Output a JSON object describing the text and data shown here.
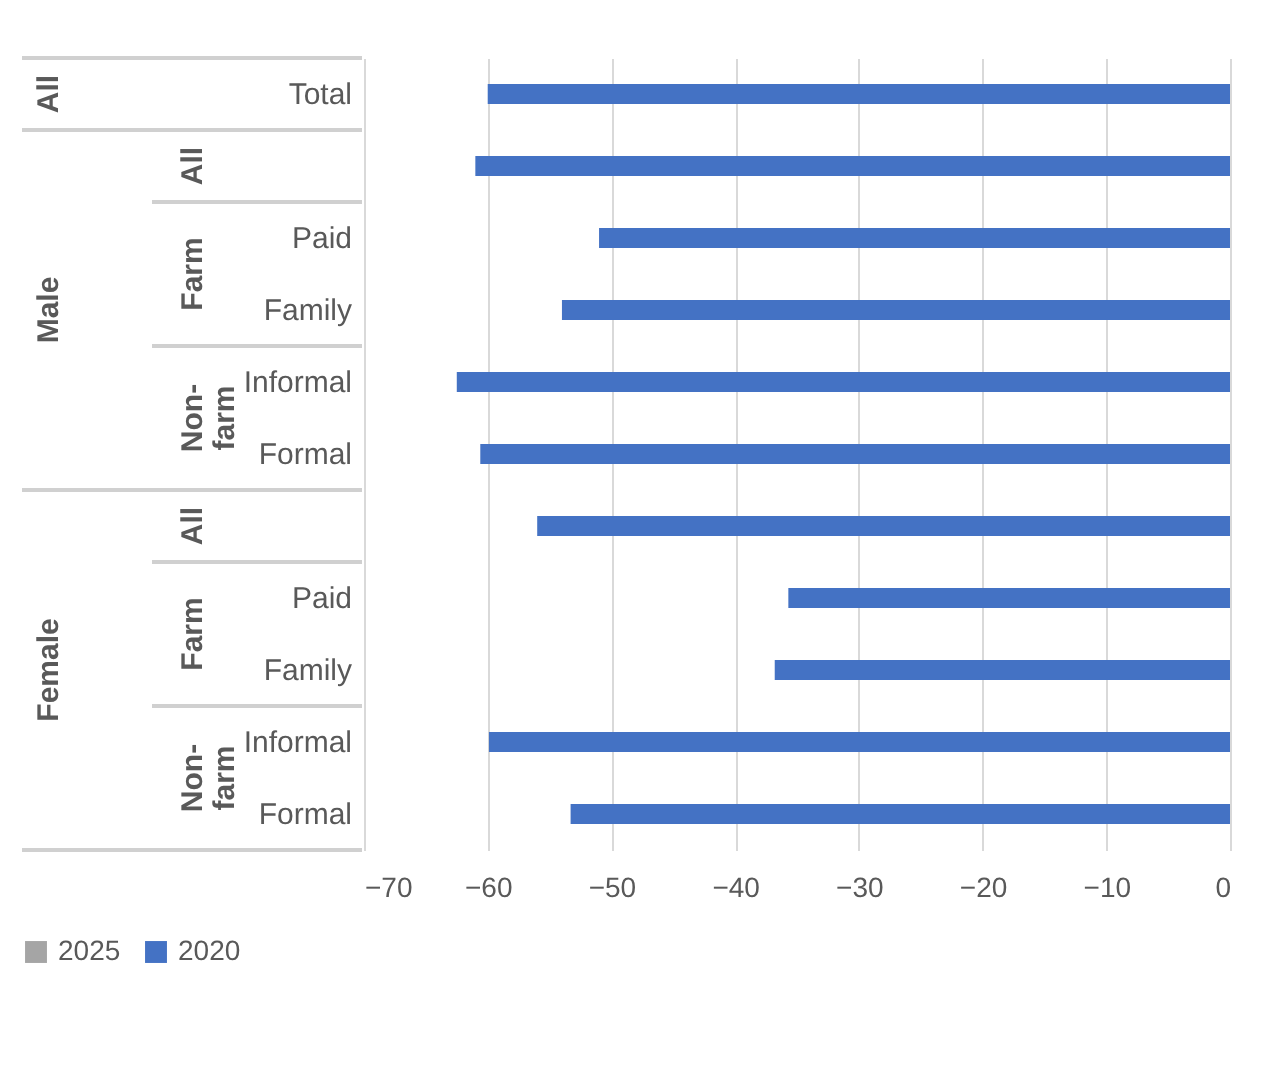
{
  "chart_data": {
    "type": "bar",
    "orientation": "horizontal",
    "categories": [
      "Total",
      null,
      "Paid",
      "Family",
      "Informal",
      "Formal",
      null,
      "Paid",
      "Family",
      "Informal",
      "Formal"
    ],
    "series": [
      {
        "name": "2025",
        "color": "#a5a5a5",
        "values": [
          0,
          0,
          0,
          0,
          0,
          0,
          0,
          0,
          0,
          0,
          0
        ]
      },
      {
        "name": "2020",
        "color": "#4472c4",
        "values": [
          -60,
          -61,
          -51,
          -54,
          -62.5,
          -60.6,
          -56,
          -35.7,
          -36.8,
          -59.9,
          -53.3
        ]
      }
    ],
    "xlim": [
      -70,
      0
    ],
    "xticks": [
      -70,
      -60,
      -50,
      -40,
      -30,
      -20,
      -10,
      0
    ],
    "grid": "x",
    "legend": "bottom",
    "annotations": [
      "All",
      "Male",
      "All",
      "Farm",
      "Non-farm",
      "Female",
      "All",
      "Farm",
      "Non-farm"
    ]
  }
}
